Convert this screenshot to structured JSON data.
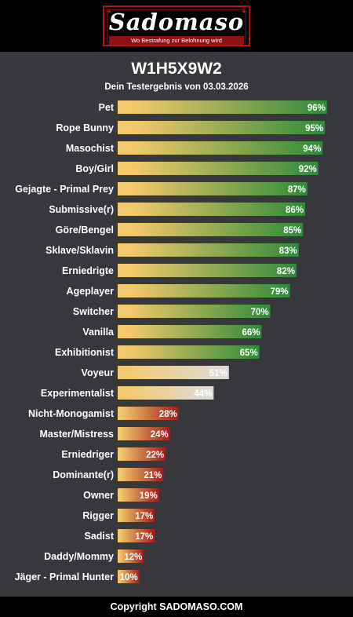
{
  "brand": {
    "name": "Sadomaso",
    "tagline": "Wo Bestrafung zur Belohnung wird"
  },
  "title": "W1H5X9W2",
  "subtitle": "Dein Testergebnis von 03.03.2026",
  "footer": "Copyright SADOMASO.COM",
  "colors": {
    "bar_start": "#f4c96b",
    "high": "#2e8b3a",
    "mid": "#dcdcdc",
    "low": "#a01c1c",
    "background": "#36383c"
  },
  "chart_data": {
    "type": "bar",
    "orientation": "horizontal",
    "unit": "%",
    "xlim": [
      0,
      100
    ],
    "grid": false,
    "categories": [
      "Pet",
      "Rope Bunny",
      "Masochist",
      "Boy/Girl",
      "Gejagte - Primal Prey",
      "Submissive(r)",
      "Göre/Bengel",
      "Sklave/Sklavin",
      "Erniedrigte",
      "Ageplayer",
      "Switcher",
      "Vanilla",
      "Exhibitionist",
      "Voyeur",
      "Experimentalist",
      "Nicht-Monogamist",
      "Master/Mistress",
      "Erniedriger",
      "Dominante(r)",
      "Owner",
      "Rigger",
      "Sadist",
      "Daddy/Mommy",
      "Jäger - Primal Hunter"
    ],
    "values": [
      96,
      95,
      94,
      92,
      87,
      86,
      85,
      83,
      82,
      79,
      70,
      66,
      65,
      51,
      44,
      28,
      24,
      22,
      21,
      19,
      17,
      17,
      12,
      10
    ],
    "value_labels": [
      "96%",
      "95%",
      "94%",
      "92%",
      "87%",
      "86%",
      "85%",
      "83%",
      "82%",
      "79%",
      "70%",
      "66%",
      "65%",
      "51%",
      "44%",
      "28%",
      "24%",
      "22%",
      "21%",
      "19%",
      "17%",
      "17%",
      "12%",
      "10%"
    ]
  }
}
